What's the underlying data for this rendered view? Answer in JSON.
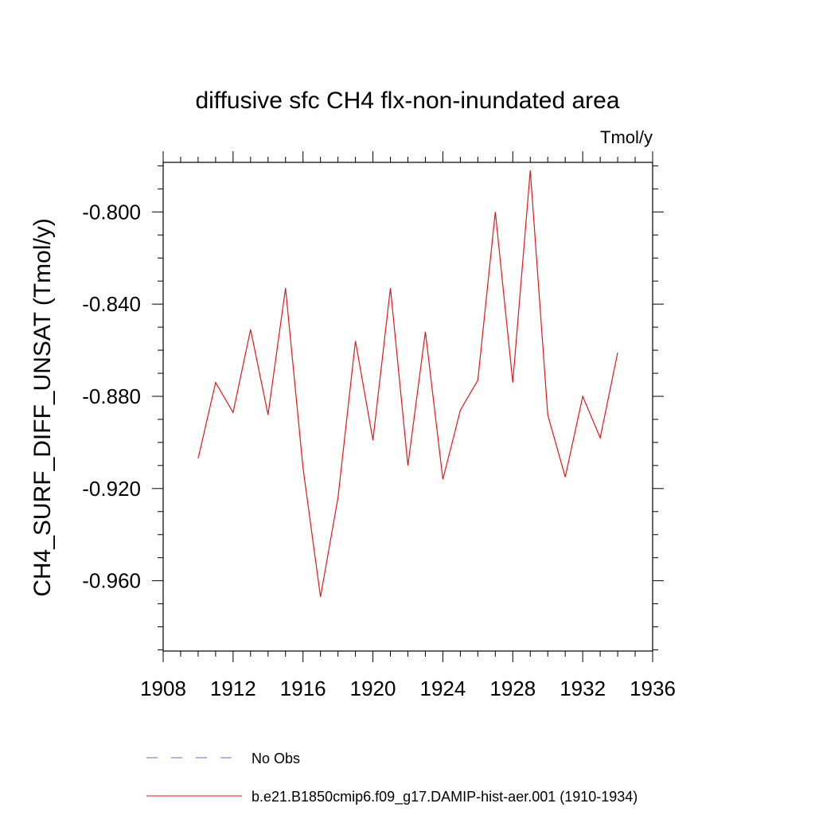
{
  "chart_data": {
    "type": "line",
    "title": "diffusive sfc CH4 flx-non-inundated area",
    "units_label": "Tmol/y",
    "ylabel": "CH4_SURF_DIFF_UNSAT  (Tmol/y)",
    "xlabel": "",
    "xlim": [
      1908,
      1936
    ],
    "ylim": [
      -0.9905,
      -0.7785
    ],
    "x_ticks": [
      1908,
      1912,
      1916,
      1920,
      1924,
      1928,
      1932,
      1936
    ],
    "x_tick_labels": [
      "1908",
      "1912",
      "1916",
      "1920",
      "1924",
      "1928",
      "1932",
      "1936"
    ],
    "y_ticks": [
      -0.8,
      -0.84,
      -0.88,
      -0.92,
      -0.96
    ],
    "y_tick_labels": [
      "-0.800",
      "-0.840",
      "-0.880",
      "-0.920",
      "-0.960"
    ],
    "grid": false,
    "legend_position": "bottom",
    "series": [
      {
        "name": "b.e21.B1850cmip6.f09_g17.DAMIP-hist-aer.001 (1910-1934)",
        "color": "#e8141c",
        "style": "solid",
        "x": [
          1910,
          1911,
          1912,
          1913,
          1914,
          1915,
          1916,
          1917,
          1918,
          1919,
          1920,
          1921,
          1922,
          1923,
          1924,
          1925,
          1926,
          1927,
          1928,
          1929,
          1930,
          1931,
          1932,
          1933,
          1934
        ],
        "values": [
          -0.907,
          -0.874,
          -0.887,
          -0.851,
          -0.888,
          -0.833,
          -0.911,
          -0.967,
          -0.924,
          -0.856,
          -0.899,
          -0.833,
          -0.91,
          -0.852,
          -0.916,
          -0.886,
          -0.873,
          -0.8,
          -0.874,
          -0.782,
          -0.888,
          -0.915,
          -0.88,
          -0.898,
          -0.861
        ]
      }
    ],
    "legend": [
      {
        "label": "No Obs",
        "color": "#6c63d0",
        "style": "dashed"
      },
      {
        "label": "b.e21.B1850cmip6.f09_g17.DAMIP-hist-aer.001 (1910-1934)",
        "color": "#e8141c",
        "style": "solid"
      }
    ]
  }
}
